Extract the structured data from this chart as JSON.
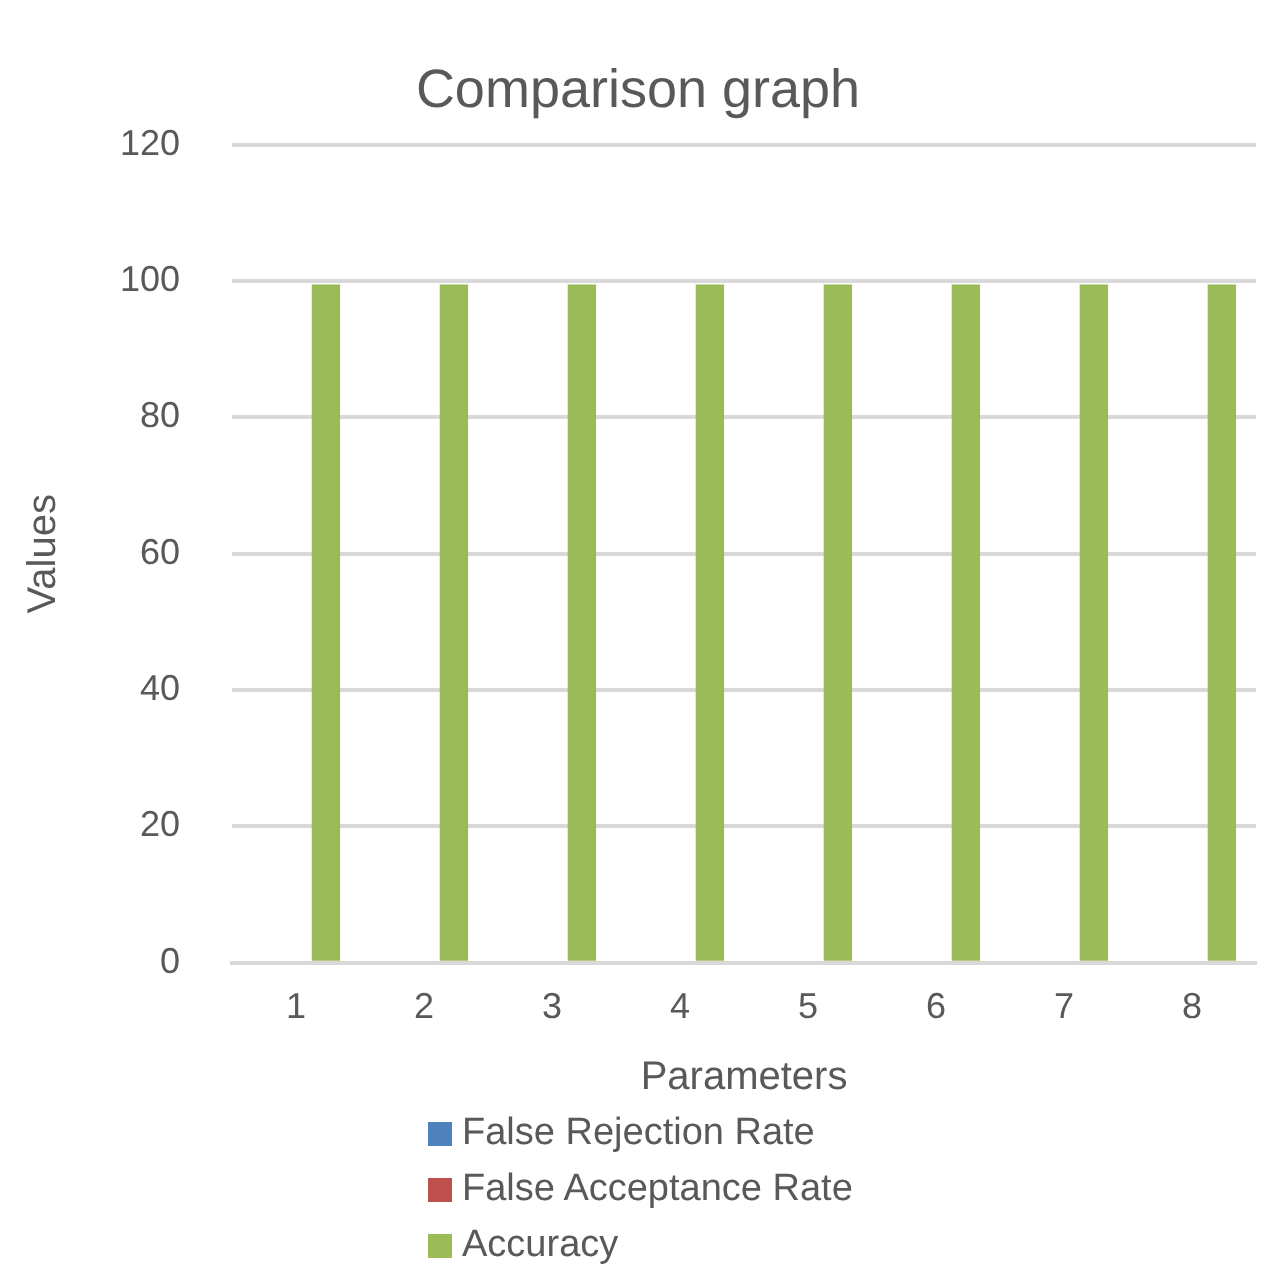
{
  "chart_data": {
    "type": "bar",
    "title": "Comparison graph",
    "xlabel": "Parameters",
    "ylabel": "Values",
    "categories": [
      "1",
      "2",
      "3",
      "4",
      "5",
      "6",
      "7",
      "8"
    ],
    "series": [
      {
        "name": "False Rejection Rate",
        "color": "#4f81bd",
        "values": [
          0,
          0,
          0,
          0,
          0,
          0,
          0,
          0
        ]
      },
      {
        "name": "False Acceptance Rate",
        "color": "#c0504d",
        "values": [
          0,
          0,
          0,
          0,
          0,
          0,
          0,
          0
        ]
      },
      {
        "name": "Accuracy",
        "color": "#9bbb59",
        "values": [
          99.5,
          99.5,
          99.5,
          99.5,
          99.5,
          99.5,
          99.5,
          99.5
        ]
      }
    ],
    "ylim": [
      0,
      120
    ],
    "yticks": [
      0,
      20,
      40,
      60,
      80,
      100,
      120
    ],
    "grid": "y",
    "legend": "bottom"
  }
}
